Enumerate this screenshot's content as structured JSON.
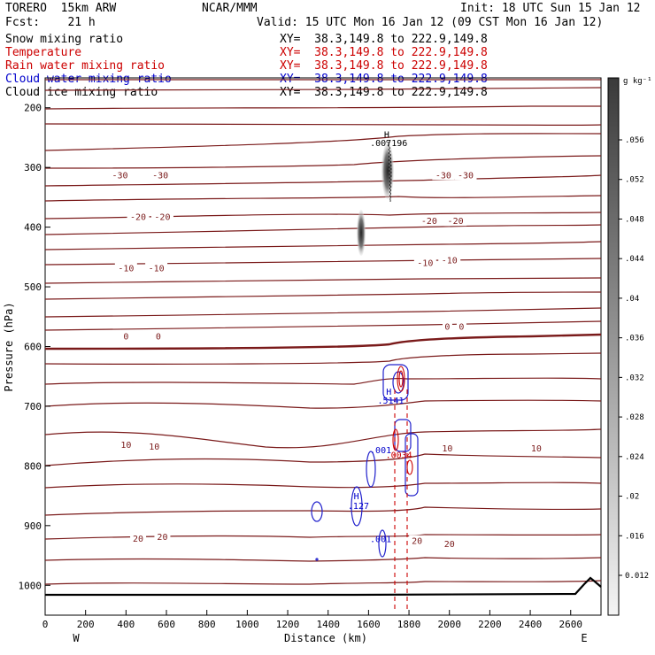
{
  "header": {
    "model": "TORERO  15km ARW",
    "forecast": "Fcst:    21 h",
    "source": "NCAR/MMM",
    "init": "Init: 18 UTC Sun 15 Jan 12",
    "valid": "Valid: 15 UTC Mon 16 Jan 12 (09 CST Mon 16 Jan 12)"
  },
  "fields": [
    {
      "name": "Snow mixing ratio",
      "color": "#000000",
      "xy": "XY=  38.3,149.8 to 222.9,149.8"
    },
    {
      "name": "Temperature",
      "color": "#cc0000",
      "xy": "XY=  38.3,149.8 to 222.9,149.8"
    },
    {
      "name": "Rain water mixing ratio",
      "color": "#cc0000",
      "xy": "XY=  38.3,149.8 to 222.9,149.8"
    },
    {
      "name": "Cloud water mixing ratio",
      "color": "#0000cc",
      "xy": "XY=  38.3,149.8 to 222.9,149.8"
    },
    {
      "name": "Cloud ice mixing ratio",
      "color": "#000000",
      "xy": "XY=  38.3,149.8 to 222.9,149.8"
    }
  ],
  "chart_data": {
    "type": "contour cross-section",
    "xlabel": "Distance (km)",
    "ylabel": "Pressure (hPa)",
    "xlim": [
      0,
      2750
    ],
    "ylim": [
      1050,
      150
    ],
    "x_ticks": [
      0,
      200,
      400,
      600,
      800,
      1000,
      1200,
      1400,
      1600,
      1800,
      2000,
      2200,
      2400,
      2600
    ],
    "y_ticks": [
      200,
      300,
      400,
      500,
      600,
      700,
      800,
      900,
      1000
    ],
    "x_end_labels": {
      "left": "W",
      "right": "E"
    },
    "colorbar": {
      "unit": "g kg⁻¹",
      "ticks": [
        "0.012",
        ".016",
        ".02",
        ".024",
        ".028",
        ".032",
        ".036",
        ".04",
        ".044",
        ".048",
        ".052",
        ".056"
      ]
    },
    "temperature_isotherms": [
      {
        "value": -30,
        "labels": [
          {
            "x": 370,
            "p": 312,
            "text": "-30"
          },
          {
            "x": 570,
            "p": 312,
            "text": "-30"
          },
          {
            "x": 1970,
            "p": 312,
            "text": "-30"
          },
          {
            "x": 2080,
            "p": 312,
            "text": "-30"
          }
        ]
      },
      {
        "value": -20,
        "labels": [
          {
            "x": 460,
            "p": 382,
            "text": "-20"
          },
          {
            "x": 580,
            "p": 382,
            "text": "-20"
          },
          {
            "x": 1900,
            "p": 389,
            "text": "-20"
          },
          {
            "x": 2030,
            "p": 389,
            "text": "-20"
          }
        ]
      },
      {
        "value": -10,
        "labels": [
          {
            "x": 400,
            "p": 468,
            "text": "-10"
          },
          {
            "x": 550,
            "p": 468,
            "text": "-10"
          },
          {
            "x": 1880,
            "p": 459,
            "text": "-10"
          },
          {
            "x": 2000,
            "p": 455,
            "text": "-10"
          }
        ]
      },
      {
        "value": 0,
        "labels": [
          {
            "x": 400,
            "p": 582,
            "text": "0"
          },
          {
            "x": 560,
            "p": 582,
            "text": "0"
          },
          {
            "x": 1990,
            "p": 566,
            "text": "0"
          },
          {
            "x": 2060,
            "p": 566,
            "text": "0"
          }
        ]
      },
      {
        "value": 10,
        "labels": [
          {
            "x": 400,
            "p": 764,
            "text": "10"
          },
          {
            "x": 540,
            "p": 767,
            "text": "10"
          },
          {
            "x": 1990,
            "p": 770,
            "text": "10"
          },
          {
            "x": 2430,
            "p": 770,
            "text": "10"
          }
        ]
      },
      {
        "value": 20,
        "labels": [
          {
            "x": 460,
            "p": 921,
            "text": "20"
          },
          {
            "x": 580,
            "p": 918,
            "text": "20"
          },
          {
            "x": 1840,
            "p": 925,
            "text": "20"
          },
          {
            "x": 2000,
            "p": 930,
            "text": "20"
          }
        ]
      }
    ],
    "annotations": [
      {
        "x": 1690,
        "p": 250,
        "text": "H",
        "color": "#000000"
      },
      {
        "x": 1700,
        "p": 264,
        "text": ".007196",
        "color": "#000000"
      },
      {
        "x": 1700,
        "p": 681,
        "text": "H",
        "color": "#0000cc"
      },
      {
        "x": 1710,
        "p": 696,
        "text": ".5141",
        "color": "#0000cc"
      },
      {
        "x": 1660,
        "p": 779,
        "text": ".001",
        "color": "#0000cc"
      },
      {
        "x": 1750,
        "p": 787,
        "text": ".0034",
        "color": "#cc0000"
      },
      {
        "x": 1540,
        "p": 856,
        "text": "H",
        "color": "#0000cc"
      },
      {
        "x": 1550,
        "p": 872,
        "text": ".127",
        "color": "#0000cc"
      },
      {
        "x": 1660,
        "p": 928,
        "text": ".001",
        "color": "#0000cc"
      }
    ]
  }
}
